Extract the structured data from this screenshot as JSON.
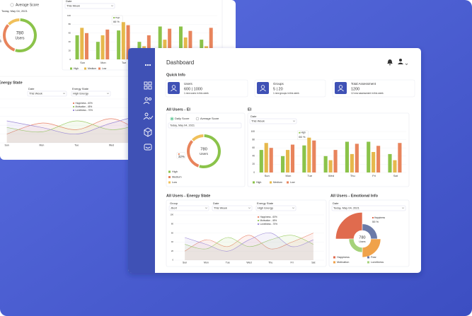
{
  "header": {
    "title": "Dashboard"
  },
  "quick_info": {
    "title": "Quick Info",
    "cards": [
      {
        "label": "Users",
        "value": "600 | 1000",
        "note": "1 new users in this week"
      },
      {
        "label": "Groups",
        "value": "5 | 20",
        "note": "1 new groups in this week"
      },
      {
        "label": "Total Assessment",
        "value": "1200",
        "note": "12 new assessment in this week"
      }
    ]
  },
  "ei_summary": {
    "title": "All Users - EI",
    "options": [
      "Daily Score",
      "Average Score"
    ],
    "date": "Today, May 04, 2021"
  },
  "ei_chart": {
    "title": "EI",
    "filter_label": "Date",
    "filter_value": "This Week"
  },
  "energy": {
    "title": "All Users - Energy State",
    "filters": [
      {
        "label": "Group",
        "value": "Jbort"
      },
      {
        "label": "Date",
        "value": "This Week"
      },
      {
        "label": "Energy State",
        "value": "High Energy"
      }
    ]
  },
  "emotional": {
    "title": "All Users - Emotional Info",
    "filter_label": "Date",
    "filter_value": "Today, May 04, 2021"
  },
  "chart_data": [
    {
      "type": "donut",
      "categories": [
        "High",
        "Medium",
        "Low"
      ],
      "values": [
        55,
        32,
        13
      ],
      "value_labels": [
        null,
        "32%",
        null
      ],
      "colors": [
        "#8bc34a",
        "#e8845c",
        "#f0c05a"
      ],
      "center_value": 780,
      "center_label": "Users"
    },
    {
      "type": "bar",
      "categories": [
        "Sun",
        "Mon",
        "Tue",
        "Wed",
        "Thu",
        "Fri",
        "Sat"
      ],
      "series": [
        {
          "name": "High",
          "color": "#8bc34a",
          "values": [
            55,
            40,
            66,
            40,
            75,
            75,
            45
          ],
          "value_labels": [
            null,
            null,
            "66 %",
            null,
            null,
            null,
            null
          ]
        },
        {
          "name": "Medium",
          "color": "#e6b84c",
          "values": [
            72,
            55,
            85,
            30,
            45,
            50,
            30
          ]
        },
        {
          "name": "Low",
          "color": "#e8845c",
          "values": [
            60,
            68,
            78,
            55,
            70,
            65,
            72
          ]
        }
      ],
      "ylim": [
        0,
        100
      ],
      "yticks": [
        0,
        20,
        40,
        60,
        80,
        100
      ],
      "grid": true
    },
    {
      "type": "line",
      "categories": [
        "Sun",
        "Mon",
        "Tue",
        "Wed",
        "Thu",
        "Fri",
        "Sat"
      ],
      "series": [
        {
          "name": "Happiness - 60%",
          "color": "#e8846b",
          "values": [
            20,
            45,
            30,
            55,
            25,
            40,
            60
          ]
        },
        {
          "name": "Motivation - 45%",
          "color": "#9ccc65",
          "values": [
            35,
            25,
            50,
            30,
            45,
            55,
            35
          ]
        },
        {
          "name": "Loneliness - 70%",
          "color": "#9c8ad6",
          "values": [
            50,
            35,
            20,
            45,
            60,
            30,
            45
          ]
        }
      ],
      "ylim": [
        0,
        100
      ],
      "yticks": [
        0,
        20,
        40,
        60,
        80,
        100
      ],
      "grid": true
    },
    {
      "type": "polar",
      "categories": [
        "Happiness",
        "Fear",
        "Motivation",
        "Loneliness"
      ],
      "values": [
        55,
        20,
        30,
        15
      ],
      "value_labels": [
        "55 %",
        null,
        null,
        null
      ],
      "colors": [
        "#e06b4e",
        "#6b7aa8",
        "#f0a24a",
        "#a5d27a"
      ],
      "rlim": [
        0,
        60
      ],
      "center_value": 780,
      "center_label": "Users"
    }
  ]
}
